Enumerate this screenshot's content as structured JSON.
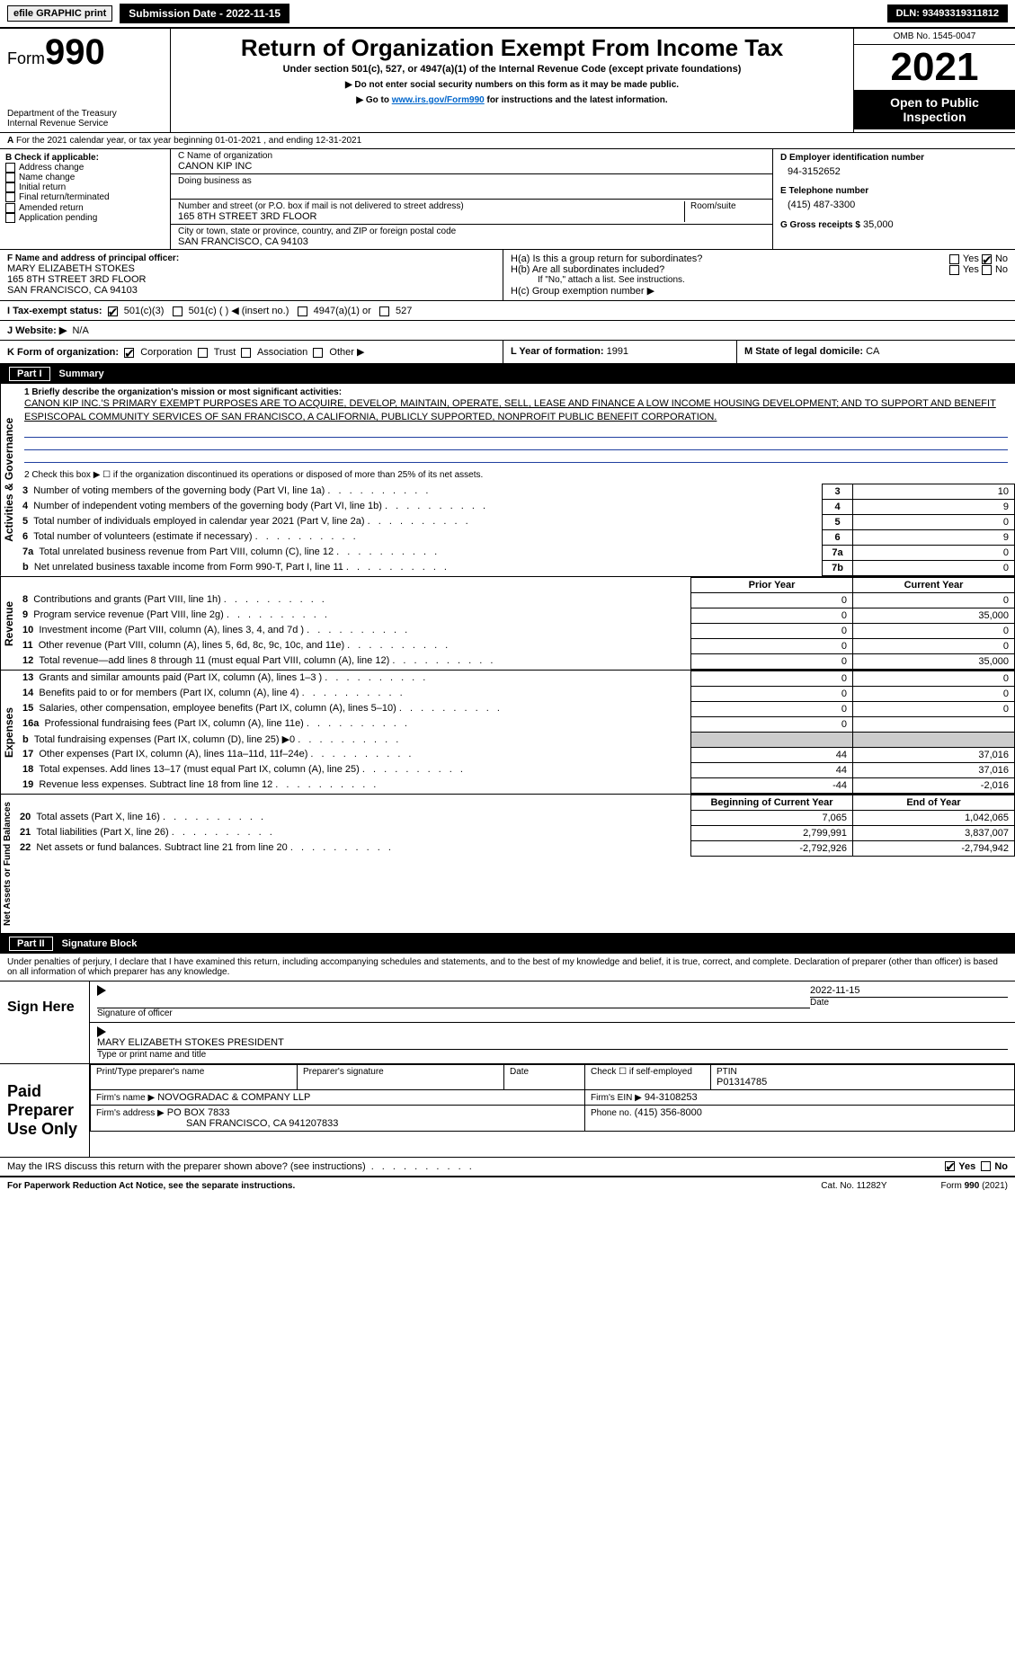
{
  "topbar": {
    "efile": "efile GRAPHIC print",
    "submission_label": "Submission Date - 2022-11-15",
    "dln": "DLN: 93493319311812"
  },
  "header": {
    "form_label_prefix": "Form",
    "form_number": "990",
    "dept": "Department of the Treasury",
    "irs": "Internal Revenue Service",
    "title": "Return of Organization Exempt From Income Tax",
    "subtitle": "Under section 501(c), 527, or 4947(a)(1) of the Internal Revenue Code (except private foundations)",
    "note1": "▶ Do not enter social security numbers on this form as it may be made public.",
    "note2_pre": "▶ Go to ",
    "note2_link": "www.irs.gov/Form990",
    "note2_post": " for instructions and the latest information.",
    "omb": "OMB No. 1545-0047",
    "year": "2021",
    "inspection": "Open to Public Inspection"
  },
  "periodA": "For the 2021 calendar year, or tax year beginning 01-01-2021    , and ending 12-31-2021",
  "boxB": {
    "heading": "B Check if applicable:",
    "items": [
      "Address change",
      "Name change",
      "Initial return",
      "Final return/terminated",
      "Amended return",
      "Application pending"
    ]
  },
  "boxC": {
    "label_name": "C Name of organization",
    "org_name": "CANON KIP INC",
    "dba_label": "Doing business as",
    "addr_label": "Number and street (or P.O. box if mail is not delivered to street address)",
    "room_label": "Room/suite",
    "addr": "165 8TH STREET 3RD FLOOR",
    "city_label": "City or town, state or province, country, and ZIP or foreign postal code",
    "city": "SAN FRANCISCO, CA  94103"
  },
  "boxD": {
    "label": "D Employer identification number",
    "value": "94-3152652"
  },
  "boxE": {
    "label": "E Telephone number",
    "value": "(415) 487-3300"
  },
  "boxG": {
    "label": "G Gross receipts $",
    "value": "35,000"
  },
  "boxF": {
    "label": "F  Name and address of principal officer:",
    "line1": "MARY ELIZABETH STOKES",
    "line2": "165 8TH STREET 3RD FLOOR",
    "line3": "SAN FRANCISCO, CA  94103"
  },
  "boxH": {
    "a": "H(a)  Is this a group return for subordinates?",
    "b": "H(b)  Are all subordinates included?",
    "b_note": "If \"No,\" attach a list. See instructions.",
    "c": "H(c)  Group exemption number ▶",
    "yes": "Yes",
    "no": "No"
  },
  "boxI": {
    "label": "I    Tax-exempt status:",
    "opt1": "501(c)(3)",
    "opt2": "501(c) (  ) ◀ (insert no.)",
    "opt3": "4947(a)(1) or",
    "opt4": "527"
  },
  "boxJ": {
    "label": "J    Website: ▶",
    "value": "N/A"
  },
  "boxK": {
    "label": "K Form of organization:",
    "opts": [
      "Corporation",
      "Trust",
      "Association",
      "Other ▶"
    ]
  },
  "boxL": {
    "label": "L Year of formation:",
    "value": "1991"
  },
  "boxM": {
    "label": "M State of legal domicile:",
    "value": "CA"
  },
  "part1": {
    "title": "Part I",
    "name": "Summary",
    "q1_label": "1  Briefly describe the organization's mission or most significant activities:",
    "q1_text": "CANON KIP INC.'S PRIMARY EXEMPT PURPOSES ARE TO ACQUIRE, DEVELOP, MAINTAIN, OPERATE, SELL, LEASE AND FINANCE A LOW INCOME HOUSING DEVELOPMENT; AND TO SUPPORT AND BENEFIT ESPISCOPAL COMMUNITY SERVICES OF SAN FRANCISCO, A CALIFORNIA, PUBLICLY SUPPORTED, NONPROFIT PUBLIC BENEFIT CORPORATION.",
    "q2": "2   Check this box ▶ ☐  if the organization discontinued its operations or disposed of more than 25% of its net assets.",
    "gov_rows": [
      {
        "n": "3",
        "t": "Number of voting members of the governing body (Part VI, line 1a)",
        "c": "3",
        "v": "10"
      },
      {
        "n": "4",
        "t": "Number of independent voting members of the governing body (Part VI, line 1b)",
        "c": "4",
        "v": "9"
      },
      {
        "n": "5",
        "t": "Total number of individuals employed in calendar year 2021 (Part V, line 2a)",
        "c": "5",
        "v": "0"
      },
      {
        "n": "6",
        "t": "Total number of volunteers (estimate if necessary)",
        "c": "6",
        "v": "9"
      },
      {
        "n": "7a",
        "t": "Total unrelated business revenue from Part VIII, column (C), line 12",
        "c": "7a",
        "v": "0"
      },
      {
        "n": "b",
        "t": "Net unrelated business taxable income from Form 990-T, Part I, line 11",
        "c": "7b",
        "v": "0"
      }
    ],
    "col_prior": "Prior Year",
    "col_current": "Current Year",
    "rev_rows": [
      {
        "n": "8",
        "t": "Contributions and grants (Part VIII, line 1h)",
        "p": "0",
        "c": "0"
      },
      {
        "n": "9",
        "t": "Program service revenue (Part VIII, line 2g)",
        "p": "0",
        "c": "35,000"
      },
      {
        "n": "10",
        "t": "Investment income (Part VIII, column (A), lines 3, 4, and 7d )",
        "p": "0",
        "c": "0"
      },
      {
        "n": "11",
        "t": "Other revenue (Part VIII, column (A), lines 5, 6d, 8c, 9c, 10c, and 11e)",
        "p": "0",
        "c": "0"
      },
      {
        "n": "12",
        "t": "Total revenue—add lines 8 through 11 (must equal Part VIII, column (A), line 12)",
        "p": "0",
        "c": "35,000"
      }
    ],
    "exp_rows": [
      {
        "n": "13",
        "t": "Grants and similar amounts paid (Part IX, column (A), lines 1–3 )",
        "p": "0",
        "c": "0"
      },
      {
        "n": "14",
        "t": "Benefits paid to or for members (Part IX, column (A), line 4)",
        "p": "0",
        "c": "0"
      },
      {
        "n": "15",
        "t": "Salaries, other compensation, employee benefits (Part IX, column (A), lines 5–10)",
        "p": "0",
        "c": "0"
      },
      {
        "n": "16a",
        "t": "Professional fundraising fees (Part IX, column (A), line 11e)",
        "p": "0",
        "c": ""
      },
      {
        "n": "b",
        "t": "Total fundraising expenses (Part IX, column (D), line 25) ▶0",
        "p": "",
        "c": "",
        "shade": true
      },
      {
        "n": "17",
        "t": "Other expenses (Part IX, column (A), lines 11a–11d, 11f–24e)",
        "p": "44",
        "c": "37,016"
      },
      {
        "n": "18",
        "t": "Total expenses. Add lines 13–17 (must equal Part IX, column (A), line 25)",
        "p": "44",
        "c": "37,016"
      },
      {
        "n": "19",
        "t": "Revenue less expenses. Subtract line 18 from line 12",
        "p": "-44",
        "c": "-2,016"
      }
    ],
    "na_begin": "Beginning of Current Year",
    "na_end": "End of Year",
    "na_rows": [
      {
        "n": "20",
        "t": "Total assets (Part X, line 16)",
        "p": "7,065",
        "c": "1,042,065"
      },
      {
        "n": "21",
        "t": "Total liabilities (Part X, line 26)",
        "p": "2,799,991",
        "c": "3,837,007"
      },
      {
        "n": "22",
        "t": "Net assets or fund balances. Subtract line 21 from line 20",
        "p": "-2,792,926",
        "c": "-2,794,942"
      }
    ],
    "side_gov": "Activities & Governance",
    "side_rev": "Revenue",
    "side_exp": "Expenses",
    "side_na": "Net Assets or Fund Balances"
  },
  "part2": {
    "title": "Part II",
    "name": "Signature Block",
    "decl": "Under penalties of perjury, I declare that I have examined this return, including accompanying schedules and statements, and to the best of my knowledge and belief, it is true, correct, and complete. Declaration of preparer (other than officer) is based on all information of which preparer has any knowledge.",
    "sign_here": "Sign Here",
    "sig_officer": "Signature of officer",
    "sig_date": "Date",
    "sig_date_val": "2022-11-15",
    "sig_name": "MARY ELIZABETH STOKES  PRESIDENT",
    "sig_name_lbl": "Type or print name and title",
    "paid": "Paid Preparer Use Only",
    "prep_name_lbl": "Print/Type preparer's name",
    "prep_sig_lbl": "Preparer's signature",
    "prep_date_lbl": "Date",
    "prep_self": "Check ☐ if self-employed",
    "ptin_lbl": "PTIN",
    "ptin_val": "P01314785",
    "firm_name_lbl": "Firm's name    ▶",
    "firm_name": "NOVOGRADAC & COMPANY LLP",
    "firm_ein_lbl": "Firm's EIN ▶",
    "firm_ein": "94-3108253",
    "firm_addr_lbl": "Firm's address ▶",
    "firm_addr1": "PO BOX 7833",
    "firm_addr2": "SAN FRANCISCO, CA  941207833",
    "firm_phone_lbl": "Phone no.",
    "firm_phone": "(415) 356-8000",
    "discuss": "May the IRS discuss this return with the preparer shown above? (see instructions)",
    "yes": "Yes",
    "no": "No"
  },
  "footer": {
    "pra": "For Paperwork Reduction Act Notice, see the separate instructions.",
    "cat": "Cat. No. 11282Y",
    "form": "Form 990 (2021)"
  }
}
